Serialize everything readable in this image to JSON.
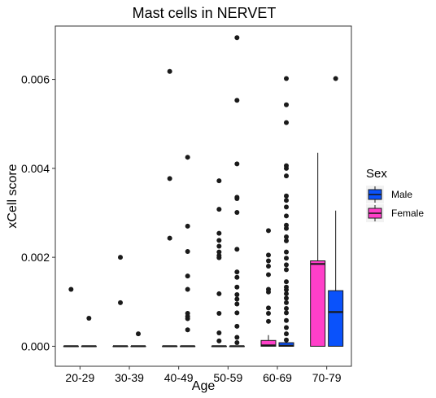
{
  "chart_data": {
    "type": "box",
    "title": "Mast cells in NERVET",
    "xlabel": "Age",
    "ylabel": "xCell score",
    "categories": [
      "20-29",
      "30-39",
      "40-49",
      "50-59",
      "60-69",
      "70-79"
    ],
    "ylim": [
      -0.00045,
      0.0072
    ],
    "yticks": [
      0,
      0.002,
      0.004,
      0.006
    ],
    "ytick_labels": [
      "0.000",
      "0.002",
      "0.004",
      "0.006"
    ],
    "grid": false,
    "legend": {
      "title": "Sex",
      "position": "right",
      "entries": [
        {
          "label": "Male",
          "color": "#0a52fb"
        },
        {
          "label": "Female",
          "color": "#ff3fc9"
        }
      ]
    },
    "series": [
      {
        "name": "Female",
        "color": "#ff3fc9",
        "boxes": [
          {
            "q1": 0,
            "median": 0,
            "q3": 0,
            "whisker_low": 0,
            "whisker_high": 0,
            "outliers": [
              0.00128
            ]
          },
          {
            "q1": 0,
            "median": 0,
            "q3": 0,
            "whisker_low": 0,
            "whisker_high": 0,
            "outliers": [
              0.002,
              0.00098
            ]
          },
          {
            "q1": 0,
            "median": 0,
            "q3": 0,
            "whisker_low": 0,
            "whisker_high": 0,
            "outliers": [
              0.00618,
              0.00377,
              0.00243
            ]
          },
          {
            "q1": 0,
            "median": 0,
            "q3": 0,
            "whisker_low": 0,
            "whisker_high": 0,
            "outliers": [
              0.00372,
              0.00308,
              0.00254,
              0.00238,
              0.00225,
              0.00212,
              0.00204,
              0.00199,
              0.00118,
              0.00074,
              0.0003,
              0.00012
            ]
          },
          {
            "q1": 0,
            "median": 2e-05,
            "q3": 0.00013,
            "whisker_low": 0,
            "whisker_high": 0.00025,
            "outliers": [
              0.0026,
              0.00205,
              0.00192,
              0.0018,
              0.00161,
              0.00128,
              0.00122,
              0.00086,
              0.00074,
              0.00056
            ]
          },
          {
            "q1": 0,
            "median": 0.00185,
            "q3": 0.00192,
            "whisker_low": 0,
            "whisker_high": 0.00435,
            "outliers": []
          }
        ]
      },
      {
        "name": "Male",
        "color": "#0a52fb",
        "boxes": [
          {
            "q1": 0,
            "median": 0,
            "q3": 0,
            "whisker_low": 0,
            "whisker_high": 0,
            "outliers": [
              0.00063
            ]
          },
          {
            "q1": 0,
            "median": 0,
            "q3": 0,
            "whisker_low": 0,
            "whisker_high": 0,
            "outliers": [
              0.00028
            ]
          },
          {
            "q1": 0,
            "median": 0,
            "q3": 0,
            "whisker_low": 0,
            "whisker_high": 0,
            "outliers": [
              0.00425,
              0.0027,
              0.00213,
              0.00158,
              0.00128,
              0.00074,
              0.00067,
              0.00062,
              0.00037
            ]
          },
          {
            "q1": 0,
            "median": 0,
            "q3": 0,
            "whisker_low": 0,
            "whisker_high": 0,
            "outliers": [
              0.00694,
              0.00553,
              0.0041,
              0.00335,
              0.00332,
              0.00301,
              0.00218,
              0.00167,
              0.00155,
              0.00133,
              0.00116,
              0.00106,
              0.00095,
              0.00075,
              0.00045,
              0.0002,
              8e-05
            ]
          },
          {
            "q1": 0,
            "median": 1e-05,
            "q3": 8e-05,
            "whisker_low": 0,
            "whisker_high": 0.00018,
            "outliers": [
              0.00602,
              0.00543,
              0.00503,
              0.00406,
              0.004,
              0.00383,
              0.00338,
              0.00328,
              0.00313,
              0.00293,
              0.00272,
              0.00265,
              0.00246,
              0.00237,
              0.00212,
              0.00198,
              0.00183,
              0.00172,
              0.00145,
              0.00133,
              0.00127,
              0.00118,
              0.00108,
              0.00098,
              0.00085,
              0.00075,
              0.00058,
              0.00042,
              0.00028,
              0.00014
            ]
          },
          {
            "q1": 0,
            "median": 0.00077,
            "q3": 0.00125,
            "whisker_low": 0,
            "whisker_high": 0.00305,
            "outliers": [
              0.00602
            ]
          }
        ]
      }
    ]
  }
}
